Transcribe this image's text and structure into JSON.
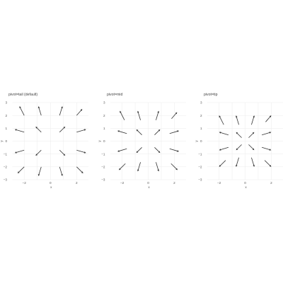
{
  "chart_data": [
    {
      "type": "quiver",
      "title": "pivot=tail (default)",
      "pivot": "tail",
      "xlabel": "x",
      "ylabel": "y",
      "xlim": [
        -2.9,
        2.9
      ],
      "ylim": [
        -3,
        3
      ],
      "xticks": [
        -2,
        0,
        2
      ],
      "yticks": [
        -3,
        -2,
        -1,
        0,
        1,
        2,
        3
      ],
      "grid": true,
      "arrows": [
        {
          "x": -2,
          "y": 2,
          "u": -0.5,
          "v": 1
        },
        {
          "x": -0.7,
          "y": 2,
          "u": -0.3,
          "v": 1
        },
        {
          "x": 0.7,
          "y": 2,
          "u": 0.3,
          "v": 1
        },
        {
          "x": 2,
          "y": 2,
          "u": 0.6,
          "v": 0.7
        },
        {
          "x": -2,
          "y": 0.7,
          "u": -1,
          "v": 0.3
        },
        {
          "x": -0.7,
          "y": 0.7,
          "u": -0.6,
          "v": 0.6
        },
        {
          "x": 0.7,
          "y": 0.7,
          "u": 0.6,
          "v": 0.6
        },
        {
          "x": 2,
          "y": 0.7,
          "u": 1,
          "v": 0.3
        },
        {
          "x": -2,
          "y": -0.7,
          "u": -1,
          "v": -0.3
        },
        {
          "x": -0.7,
          "y": -0.7,
          "u": -0.6,
          "v": -0.6
        },
        {
          "x": 0.7,
          "y": -0.7,
          "u": 0.6,
          "v": -0.6
        },
        {
          "x": 2,
          "y": -0.7,
          "u": 1,
          "v": -0.3
        },
        {
          "x": -2,
          "y": -2,
          "u": -0.7,
          "v": -0.7
        },
        {
          "x": -0.7,
          "y": -2,
          "u": -0.3,
          "v": -1
        },
        {
          "x": 0.7,
          "y": -2,
          "u": 0.3,
          "v": -1
        },
        {
          "x": 2,
          "y": -2,
          "u": 0.7,
          "v": -0.7
        }
      ]
    },
    {
      "type": "quiver",
      "title": "pivot=mid",
      "pivot": "mid",
      "xlabel": "x",
      "ylabel": "y",
      "xlim": [
        -2.9,
        2.9
      ],
      "ylim": [
        -3,
        3
      ],
      "xticks": [
        -2,
        0,
        2
      ],
      "yticks": [
        -3,
        -2,
        -1,
        0,
        1,
        2,
        3
      ],
      "grid": true,
      "arrows": [
        {
          "x": -2,
          "y": 2,
          "u": -0.5,
          "v": 1
        },
        {
          "x": -0.7,
          "y": 2,
          "u": -0.3,
          "v": 1
        },
        {
          "x": 0.7,
          "y": 2,
          "u": 0.3,
          "v": 1
        },
        {
          "x": 2,
          "y": 2,
          "u": 0.6,
          "v": 0.7
        },
        {
          "x": -2,
          "y": 0.7,
          "u": -1,
          "v": 0.3
        },
        {
          "x": -0.7,
          "y": 0.7,
          "u": -0.6,
          "v": 0.6
        },
        {
          "x": 0.7,
          "y": 0.7,
          "u": 0.6,
          "v": 0.6
        },
        {
          "x": 2,
          "y": 0.7,
          "u": 1,
          "v": 0.3
        },
        {
          "x": -2,
          "y": -0.7,
          "u": -1,
          "v": -0.3
        },
        {
          "x": -0.7,
          "y": -0.7,
          "u": -0.6,
          "v": -0.6
        },
        {
          "x": 0.7,
          "y": -0.7,
          "u": 0.6,
          "v": -0.6
        },
        {
          "x": 2,
          "y": -0.7,
          "u": 1,
          "v": -0.3
        },
        {
          "x": -2,
          "y": -2,
          "u": -0.7,
          "v": -0.7
        },
        {
          "x": -0.7,
          "y": -2,
          "u": -0.3,
          "v": -1
        },
        {
          "x": 0.7,
          "y": -2,
          "u": 0.3,
          "v": -1
        },
        {
          "x": 2,
          "y": -2,
          "u": 0.7,
          "v": -0.7
        }
      ]
    },
    {
      "type": "quiver",
      "title": "pivot=tip",
      "pivot": "tip",
      "xlabel": "x",
      "ylabel": "y",
      "xlim": [
        -2.9,
        2.9
      ],
      "ylim": [
        -3,
        3
      ],
      "xticks": [
        -2,
        0,
        2
      ],
      "yticks": [
        -3,
        -2,
        -1,
        0,
        1,
        2,
        3
      ],
      "grid": true,
      "arrows": [
        {
          "x": -2,
          "y": 2,
          "u": -0.5,
          "v": 1
        },
        {
          "x": -0.7,
          "y": 2,
          "u": -0.3,
          "v": 1
        },
        {
          "x": 0.7,
          "y": 2,
          "u": 0.3,
          "v": 1
        },
        {
          "x": 2,
          "y": 2,
          "u": 0.6,
          "v": 0.7
        },
        {
          "x": -2,
          "y": 0.7,
          "u": -1,
          "v": 0.3
        },
        {
          "x": -0.7,
          "y": 0.7,
          "u": -0.6,
          "v": 0.6
        },
        {
          "x": 0.7,
          "y": 0.7,
          "u": 0.6,
          "v": 0.6
        },
        {
          "x": 2,
          "y": 0.7,
          "u": 1,
          "v": 0.3
        },
        {
          "x": -2,
          "y": -0.7,
          "u": -1,
          "v": -0.3
        },
        {
          "x": -0.7,
          "y": -0.7,
          "u": -0.6,
          "v": -0.6
        },
        {
          "x": 0.7,
          "y": -0.7,
          "u": 0.6,
          "v": -0.6
        },
        {
          "x": 2,
          "y": -0.7,
          "u": 1,
          "v": -0.3
        },
        {
          "x": -2,
          "y": -2,
          "u": -0.7,
          "v": -0.7
        },
        {
          "x": -0.7,
          "y": -2,
          "u": -0.3,
          "v": -1
        },
        {
          "x": 0.7,
          "y": -2,
          "u": 0.3,
          "v": -1
        },
        {
          "x": 2,
          "y": -2,
          "u": 0.7,
          "v": -0.7
        }
      ]
    }
  ],
  "colors": {
    "arrow": "#333333",
    "grid": "#ebebeb",
    "text": "#555555",
    "background": "#ffffff"
  }
}
